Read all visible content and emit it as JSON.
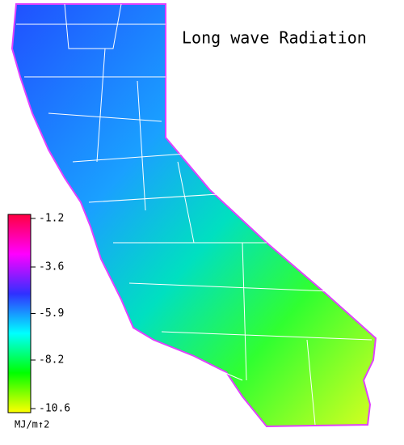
{
  "title": "Long wave Radiation",
  "colorbar": {
    "label": "MJ/m↑2",
    "lim": [
      -1.2,
      -10.6
    ],
    "ticks": [
      -1.2,
      -3.6,
      -5.9,
      -8.2,
      -10.6
    ],
    "colors": [
      "#ff0040",
      "#ff00ff",
      "#3030ff",
      "#00ffff",
      "#00ff00",
      "#ffff00"
    ]
  }
}
